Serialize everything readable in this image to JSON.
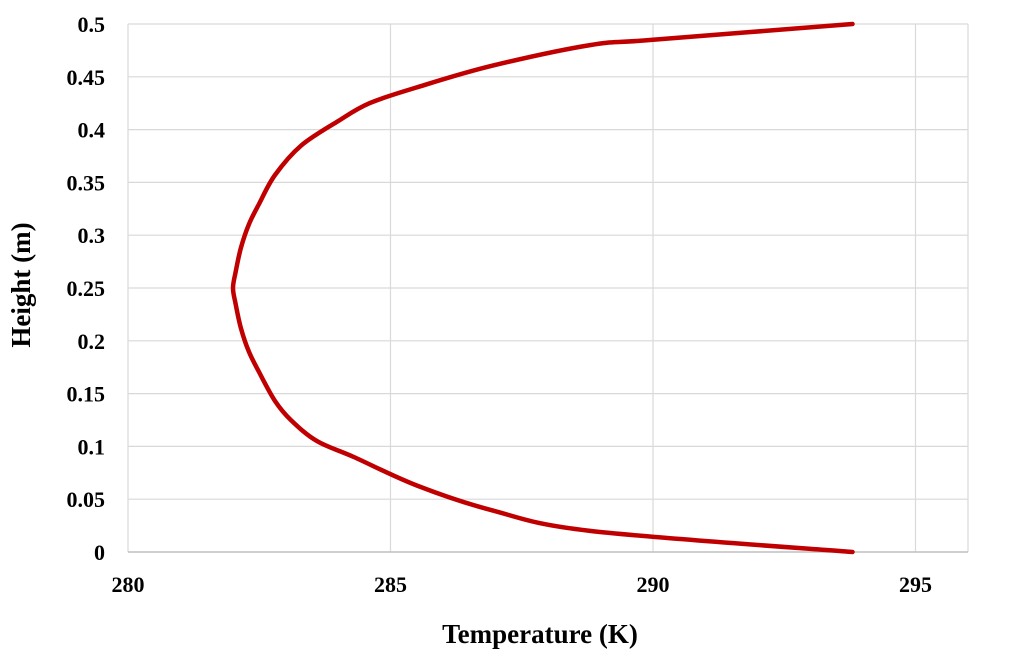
{
  "chart_data": {
    "type": "line",
    "title": "",
    "xlabel": "Temperature (K)",
    "ylabel": "Height (m)",
    "xlim": [
      280,
      296
    ],
    "ylim": [
      0,
      0.5
    ],
    "xticks": [
      280,
      285,
      290,
      295
    ],
    "xtick_labels": [
      "280",
      "285",
      "290",
      "295"
    ],
    "yticks": [
      0,
      0.05,
      0.1,
      0.15,
      0.2,
      0.25,
      0.3,
      0.35,
      0.4,
      0.45,
      0.5
    ],
    "ytick_labels": [
      "0",
      "0.05",
      "0.1",
      "0.15",
      "0.2",
      "0.25",
      "0.3",
      "0.35",
      "0.4",
      "0.45",
      "0.5"
    ],
    "grid": true,
    "series": [
      {
        "color": "#c00000",
        "points": [
          {
            "x": 293.8,
            "y": 0.0
          },
          {
            "x": 288.8,
            "y": 0.02
          },
          {
            "x": 286.9,
            "y": 0.04
          },
          {
            "x": 285.5,
            "y": 0.063
          },
          {
            "x": 284.3,
            "y": 0.09
          },
          {
            "x": 283.6,
            "y": 0.105
          },
          {
            "x": 283.1,
            "y": 0.125
          },
          {
            "x": 282.8,
            "y": 0.143
          },
          {
            "x": 282.5,
            "y": 0.17
          },
          {
            "x": 282.3,
            "y": 0.19
          },
          {
            "x": 282.15,
            "y": 0.212
          },
          {
            "x": 282.05,
            "y": 0.235
          },
          {
            "x": 282.0,
            "y": 0.25
          },
          {
            "x": 282.05,
            "y": 0.265
          },
          {
            "x": 282.15,
            "y": 0.288
          },
          {
            "x": 282.3,
            "y": 0.31
          },
          {
            "x": 282.5,
            "y": 0.33
          },
          {
            "x": 282.8,
            "y": 0.357
          },
          {
            "x": 283.3,
            "y": 0.385
          },
          {
            "x": 284.0,
            "y": 0.408
          },
          {
            "x": 284.6,
            "y": 0.425
          },
          {
            "x": 285.5,
            "y": 0.44
          },
          {
            "x": 286.9,
            "y": 0.46
          },
          {
            "x": 288.8,
            "y": 0.48
          },
          {
            "x": 290.0,
            "y": 0.485
          },
          {
            "x": 293.8,
            "y": 0.5
          }
        ]
      }
    ]
  }
}
